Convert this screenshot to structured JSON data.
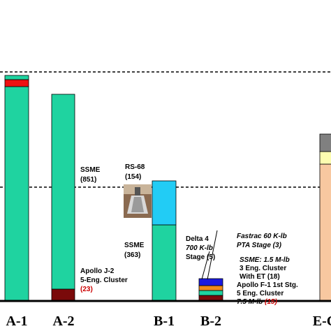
{
  "chart_data": {
    "type": "bar",
    "stacked": true,
    "categories": [
      "A-1",
      "A-2",
      "B-1",
      "B-2",
      "E-Co"
    ],
    "grid": false,
    "reference_lines": 2,
    "bars": [
      {
        "category": "A-1",
        "segments": [
          {
            "value": 306,
            "color": "#1fd3a0"
          },
          {
            "value": 10,
            "color": "#ee1111"
          },
          {
            "value": 6,
            "color": "#1fd3a0"
          }
        ]
      },
      {
        "category": "A-2",
        "segments": [
          {
            "value": 16,
            "color": "#7a0a0a"
          },
          {
            "value": 279,
            "color": "#1fd3a0"
          }
        ]
      },
      {
        "category": "B-1",
        "segments": [
          {
            "value": 108,
            "color": "#1fd3a0"
          },
          {
            "value": 63,
            "color": "#22ccf5"
          }
        ]
      },
      {
        "category": "B-2",
        "segments": [
          {
            "value": 7,
            "color": "#7a0a0a"
          },
          {
            "value": 7,
            "color": "#1fd3a0"
          },
          {
            "value": 7,
            "color": "#ee8a1a"
          },
          {
            "value": 10,
            "color": "#1a1ae0"
          }
        ]
      },
      {
        "category": "E-Co",
        "segments": [
          {
            "value": 195,
            "color": "#f8c8a0"
          },
          {
            "value": 18,
            "color": "#fdfdb0"
          },
          {
            "value": 25,
            "color": "#808080"
          }
        ]
      }
    ],
    "annotations": [
      {
        "lines": [
          "SSME",
          "(851)"
        ],
        "red": []
      },
      {
        "lines": [
          "Apollo J-2",
          "5-Eng. Cluster",
          "(23)"
        ],
        "red": [
          2
        ]
      },
      {
        "lines": [
          "RS-68",
          "(154)"
        ],
        "red": []
      },
      {
        "lines": [
          "SSME",
          "(363)"
        ],
        "red": []
      },
      {
        "lines": [
          "Fastrac 60 K-lb",
          "PTA Stage (3)"
        ],
        "red": []
      },
      {
        "lines": [
          "Delta 4",
          "700 K-lb",
          "Stage (5)"
        ],
        "red": []
      },
      {
        "lines": [
          "SSME: 1.5 M-lb",
          "3 Eng. Cluster",
          "With ET (18)"
        ],
        "red": []
      },
      {
        "lines": [
          "Apollo F-1 1st Stg.",
          "5 Eng. Cluster",
          "7.5 M-lb (15)"
        ],
        "red": []
      }
    ],
    "red_values": [
      "(23)",
      "(15)"
    ],
    "image_description_icon": "rocket-engine-photo-icon"
  }
}
